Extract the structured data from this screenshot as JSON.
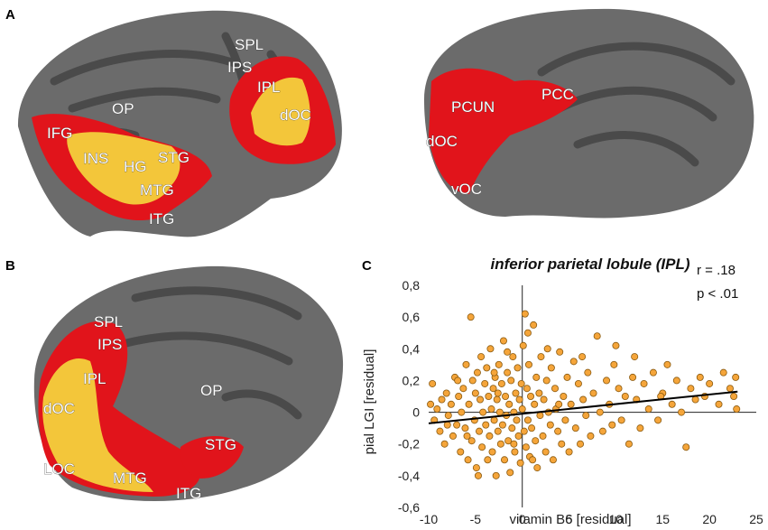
{
  "panels": {
    "a": "A",
    "b": "B",
    "c": "C"
  },
  "colors": {
    "cortex": "#6b6b6b",
    "sulci": "#4a4a4a",
    "red": "#e1141b",
    "yellow": "#f3c63a",
    "dot": "#f5a53a",
    "dot_edge": "#8a5a10"
  },
  "brain_a_lateral": {
    "labels": [
      "SPL",
      "IPS",
      "IPL",
      "dOC",
      "OP",
      "IFG",
      "INS",
      "HG",
      "STG",
      "MTG",
      "ITG"
    ]
  },
  "brain_a_medial": {
    "labels": [
      "PCUN",
      "PCC",
      "dOC",
      "vOC"
    ]
  },
  "brain_b": {
    "labels": [
      "SPL",
      "IPS",
      "IPL",
      "dOC",
      "OP",
      "STG",
      "LOC",
      "MTG",
      "ITG"
    ]
  },
  "chart_data": {
    "type": "scatter",
    "title": "inferior parietal lobule (IPL)",
    "xlabel": "vitamin B6 [residual]",
    "ylabel": "pial LGI [residual]",
    "xlim": [
      -10,
      25
    ],
    "ylim": [
      -0.6,
      0.8
    ],
    "x_ticks": [
      "-10",
      "-5",
      "0",
      "5",
      "10",
      "15",
      "20",
      "25"
    ],
    "y_ticks": [
      "0,8",
      "0,6",
      "0,4",
      "0,2",
      "0",
      "-0,2",
      "-0,4",
      "-0,6"
    ],
    "stats": {
      "r": "r =  .18",
      "p": "p < .01"
    },
    "regression": {
      "x": [
        -10,
        23
      ],
      "y": [
        -0.07,
        0.13
      ]
    },
    "points": [
      [
        -9.6,
        0.18
      ],
      [
        -9.4,
        -0.05
      ],
      [
        -9.1,
        0.02
      ],
      [
        -8.8,
        -0.12
      ],
      [
        -8.6,
        0.08
      ],
      [
        -8.3,
        -0.2
      ],
      [
        -8.1,
        0.12
      ],
      [
        -7.9,
        -0.02
      ],
      [
        -7.6,
        0.05
      ],
      [
        -7.4,
        -0.15
      ],
      [
        -7.2,
        0.22
      ],
      [
        -7.0,
        -0.08
      ],
      [
        -6.8,
        0.1
      ],
      [
        -6.6,
        -0.25
      ],
      [
        -6.5,
        0.0
      ],
      [
        -6.3,
        0.15
      ],
      [
        -6.1,
        -0.1
      ],
      [
        -6.0,
        0.3
      ],
      [
        -5.8,
        -0.3
      ],
      [
        -5.7,
        0.05
      ],
      [
        -5.5,
        0.6
      ],
      [
        -5.4,
        -0.18
      ],
      [
        -5.3,
        0.2
      ],
      [
        -5.1,
        -0.05
      ],
      [
        -5.0,
        0.12
      ],
      [
        -4.9,
        -0.35
      ],
      [
        -4.8,
        0.25
      ],
      [
        -4.6,
        -0.12
      ],
      [
        -4.5,
        0.08
      ],
      [
        -4.4,
        0.35
      ],
      [
        -4.3,
        -0.22
      ],
      [
        -4.2,
        0.0
      ],
      [
        -4.0,
        0.18
      ],
      [
        -3.9,
        -0.08
      ],
      [
        -3.8,
        0.28
      ],
      [
        -3.7,
        -0.3
      ],
      [
        -3.6,
        0.1
      ],
      [
        -3.5,
        -0.15
      ],
      [
        -3.4,
        0.4
      ],
      [
        -3.3,
        0.02
      ],
      [
        -3.2,
        -0.25
      ],
      [
        -3.1,
        0.15
      ],
      [
        -3.0,
        -0.05
      ],
      [
        -2.9,
        0.22
      ],
      [
        -2.8,
        -0.4
      ],
      [
        -2.7,
        0.08
      ],
      [
        -2.6,
        -0.12
      ],
      [
        -2.5,
        0.3
      ],
      [
        -2.4,
        0.0
      ],
      [
        -2.3,
        -0.2
      ],
      [
        -2.2,
        0.18
      ],
      [
        -2.1,
        -0.08
      ],
      [
        -2.0,
        0.45
      ],
      [
        -1.9,
        -0.3
      ],
      [
        -1.8,
        0.1
      ],
      [
        -1.7,
        -0.02
      ],
      [
        -1.6,
        0.25
      ],
      [
        -1.5,
        -0.18
      ],
      [
        -1.4,
        0.05
      ],
      [
        -1.3,
        -0.38
      ],
      [
        -1.2,
        0.2
      ],
      [
        -1.1,
        -0.1
      ],
      [
        -1.0,
        0.35
      ],
      [
        -0.9,
        0.0
      ],
      [
        -0.8,
        -0.25
      ],
      [
        -0.7,
        0.12
      ],
      [
        -0.6,
        -0.05
      ],
      [
        -0.5,
        0.28
      ],
      [
        -0.4,
        -0.15
      ],
      [
        -0.3,
        0.08
      ],
      [
        -0.2,
        -0.32
      ],
      [
        -0.1,
        0.18
      ],
      [
        0.0,
        0.02
      ],
      [
        0.1,
        0.42
      ],
      [
        0.2,
        -0.12
      ],
      [
        0.3,
        0.62
      ],
      [
        0.4,
        -0.22
      ],
      [
        0.5,
        0.15
      ],
      [
        0.6,
        -0.05
      ],
      [
        0.7,
        0.3
      ],
      [
        0.8,
        -0.28
      ],
      [
        0.9,
        0.1
      ],
      [
        1.0,
        -0.1
      ],
      [
        1.2,
        0.55
      ],
      [
        1.3,
        0.05
      ],
      [
        1.4,
        -0.18
      ],
      [
        1.5,
        0.22
      ],
      [
        1.6,
        -0.35
      ],
      [
        1.8,
        0.12
      ],
      [
        1.9,
        -0.02
      ],
      [
        2.0,
        0.35
      ],
      [
        2.2,
        -0.15
      ],
      [
        2.3,
        0.08
      ],
      [
        2.5,
        -0.25
      ],
      [
        2.6,
        0.2
      ],
      [
        2.8,
        0.0
      ],
      [
        3.0,
        -0.08
      ],
      [
        3.1,
        0.28
      ],
      [
        3.3,
        -0.3
      ],
      [
        3.5,
        0.15
      ],
      [
        3.6,
        0.02
      ],
      [
        3.8,
        -0.12
      ],
      [
        4.0,
        0.38
      ],
      [
        4.2,
        -0.2
      ],
      [
        4.4,
        0.1
      ],
      [
        4.6,
        -0.05
      ],
      [
        4.8,
        0.22
      ],
      [
        5.0,
        -0.25
      ],
      [
        5.2,
        0.05
      ],
      [
        5.5,
        0.32
      ],
      [
        5.7,
        -0.1
      ],
      [
        6.0,
        0.18
      ],
      [
        6.2,
        -0.2
      ],
      [
        6.5,
        0.08
      ],
      [
        6.8,
        -0.02
      ],
      [
        7.0,
        0.25
      ],
      [
        7.3,
        -0.15
      ],
      [
        7.6,
        0.12
      ],
      [
        8.0,
        0.48
      ],
      [
        8.3,
        0.0
      ],
      [
        8.6,
        -0.12
      ],
      [
        9.0,
        0.2
      ],
      [
        9.3,
        0.05
      ],
      [
        9.6,
        -0.08
      ],
      [
        10.0,
        0.42
      ],
      [
        10.3,
        0.15
      ],
      [
        10.6,
        -0.05
      ],
      [
        11.0,
        0.1
      ],
      [
        11.4,
        -0.2
      ],
      [
        11.8,
        0.22
      ],
      [
        12.2,
        0.08
      ],
      [
        12.6,
        -0.1
      ],
      [
        13.0,
        0.18
      ],
      [
        13.5,
        0.02
      ],
      [
        14.0,
        0.25
      ],
      [
        14.5,
        -0.05
      ],
      [
        15.0,
        0.12
      ],
      [
        15.5,
        0.3
      ],
      [
        16.0,
        0.05
      ],
      [
        16.5,
        0.2
      ],
      [
        17.0,
        0.0
      ],
      [
        17.5,
        -0.22
      ],
      [
        18.0,
        0.15
      ],
      [
        18.5,
        0.08
      ],
      [
        19.0,
        0.22
      ],
      [
        19.5,
        0.1
      ],
      [
        20.0,
        0.18
      ],
      [
        21.0,
        0.05
      ],
      [
        21.5,
        0.25
      ],
      [
        22.2,
        0.15
      ],
      [
        22.6,
        0.1
      ],
      [
        22.8,
        0.22
      ],
      [
        22.9,
        0.02
      ],
      [
        -9.8,
        0.05
      ],
      [
        -6.9,
        0.2
      ],
      [
        -4.7,
        -0.4
      ],
      [
        -3.0,
        0.25
      ],
      [
        -1.6,
        0.38
      ],
      [
        0.6,
        0.5
      ],
      [
        2.7,
        0.4
      ],
      [
        -5.9,
        -0.15
      ],
      [
        -2.6,
        0.12
      ],
      [
        1.1,
        -0.3
      ],
      [
        3.9,
        0.05
      ],
      [
        6.4,
        0.35
      ],
      [
        9.8,
        0.3
      ],
      [
        12.0,
        0.35
      ],
      [
        14.8,
        0.1
      ],
      [
        -8.0,
        -0.08
      ],
      [
        -0.9,
        -0.2
      ]
    ]
  }
}
